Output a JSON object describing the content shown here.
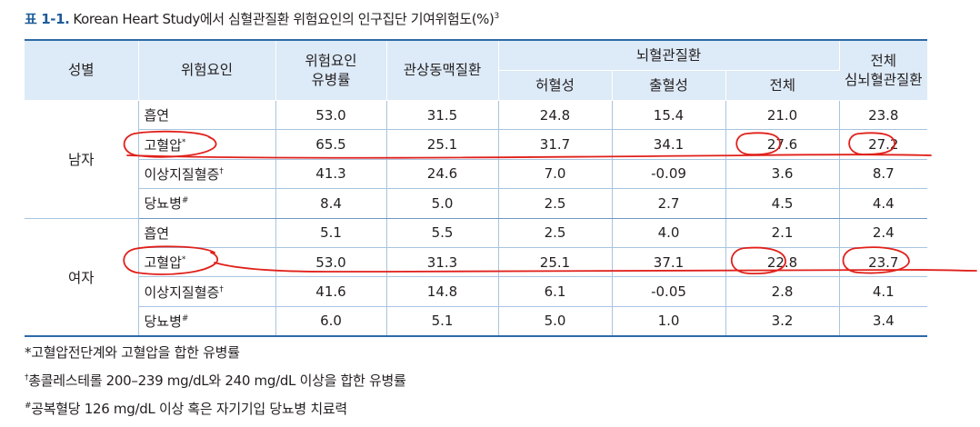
{
  "caption": {
    "number": "표 1-1.",
    "text": "Korean Heart Study에서 심혈관질환 위험요인의 인구집단 기여위험도(%)",
    "ref": "3"
  },
  "headers": {
    "sex": "성별",
    "factor": "위험요인",
    "prevalence": [
      "위험요인",
      "유병률"
    ],
    "chd": "관상동맥질환",
    "stroke_group": "뇌혈관질환",
    "ischemic": "허혈성",
    "hemorrhagic": "출혈성",
    "stroke_total": "전체",
    "total_cvd": [
      "전체",
      "심뇌혈관질환"
    ]
  },
  "groups": [
    {
      "sex": "남자",
      "rows": [
        {
          "factor": "흡연",
          "mark": "",
          "values": [
            "53.0",
            "31.5",
            "24.8",
            "15.4",
            "21.0",
            "23.8"
          ]
        },
        {
          "factor": "고혈압",
          "mark": "*",
          "values": [
            "65.5",
            "25.1",
            "31.7",
            "34.1",
            "27.6",
            "27.2"
          ]
        },
        {
          "factor": "이상지질혈증",
          "mark": "†",
          "values": [
            "41.3",
            "24.6",
            "7.0",
            "-0.09",
            "3.6",
            "8.7"
          ]
        },
        {
          "factor": "당뇨병",
          "mark": "#",
          "values": [
            "8.4",
            "5.0",
            "2.5",
            "2.7",
            "4.5",
            "4.4"
          ]
        }
      ]
    },
    {
      "sex": "여자",
      "rows": [
        {
          "factor": "흡연",
          "mark": "",
          "values": [
            "5.1",
            "5.5",
            "2.5",
            "4.0",
            "2.1",
            "2.4"
          ]
        },
        {
          "factor": "고혈압",
          "mark": "*",
          "values": [
            "53.0",
            "31.3",
            "25.1",
            "37.1",
            "22.8",
            "23.7"
          ]
        },
        {
          "factor": "이상지질혈증",
          "mark": "†",
          "values": [
            "41.6",
            "14.8",
            "6.1",
            "-0.05",
            "2.8",
            "4.1"
          ]
        },
        {
          "factor": "당뇨병",
          "mark": "#",
          "values": [
            "6.0",
            "5.1",
            "5.0",
            "1.0",
            "3.2",
            "3.4"
          ]
        }
      ]
    }
  ],
  "footnotes": [
    {
      "mark": "*",
      "text": "고혈압전단계와 고혈압을 합한 유병률"
    },
    {
      "mark": "†",
      "text": "총콜레스테롤 200–239 mg/dL와 240 mg/dL 이상을 합한 유병률"
    },
    {
      "mark": "#",
      "text": "공복혈당 126 mg/dL 이상 혹은 자기기입 당뇨병 치료력"
    }
  ],
  "annotation_color": "#e0201b"
}
